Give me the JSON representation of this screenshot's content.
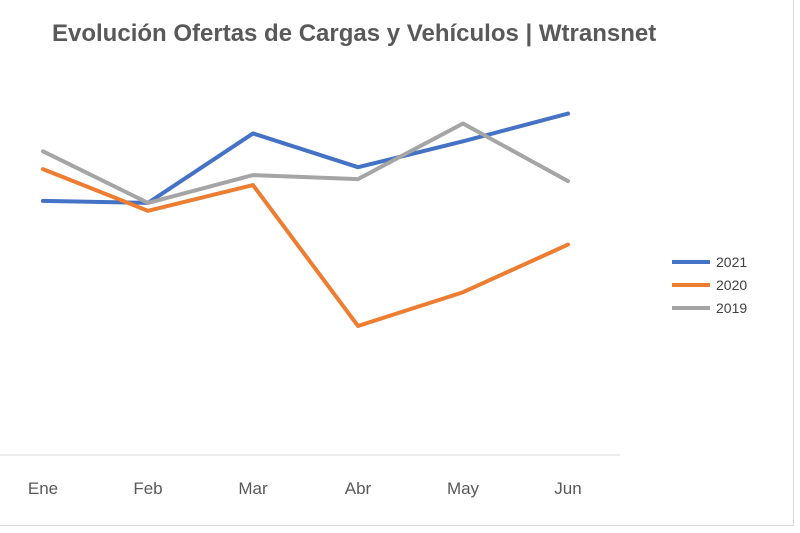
{
  "chart_data": {
    "type": "line",
    "title": "Evolución Ofertas de Cargas y Vehículos | Wtransnet",
    "categories": [
      "Ene",
      "Feb",
      "Mar",
      "Abr",
      "May",
      "Jun"
    ],
    "series": [
      {
        "name": "2021",
        "color": "#4472c4",
        "values": [
          64,
          63.5,
          81,
          72.5,
          79,
          86
        ]
      },
      {
        "name": "2020",
        "color": "#ed7d31",
        "values": [
          72,
          61.5,
          68,
          32.5,
          41,
          53
        ]
      },
      {
        "name": "2019",
        "color": "#a5a5a5",
        "values": [
          76.5,
          63.5,
          70.5,
          69.5,
          83.5,
          69
        ]
      }
    ],
    "ylim": [
      0,
      100
    ],
    "grid": false,
    "legend_position": "right",
    "xlabel": "",
    "ylabel": ""
  }
}
